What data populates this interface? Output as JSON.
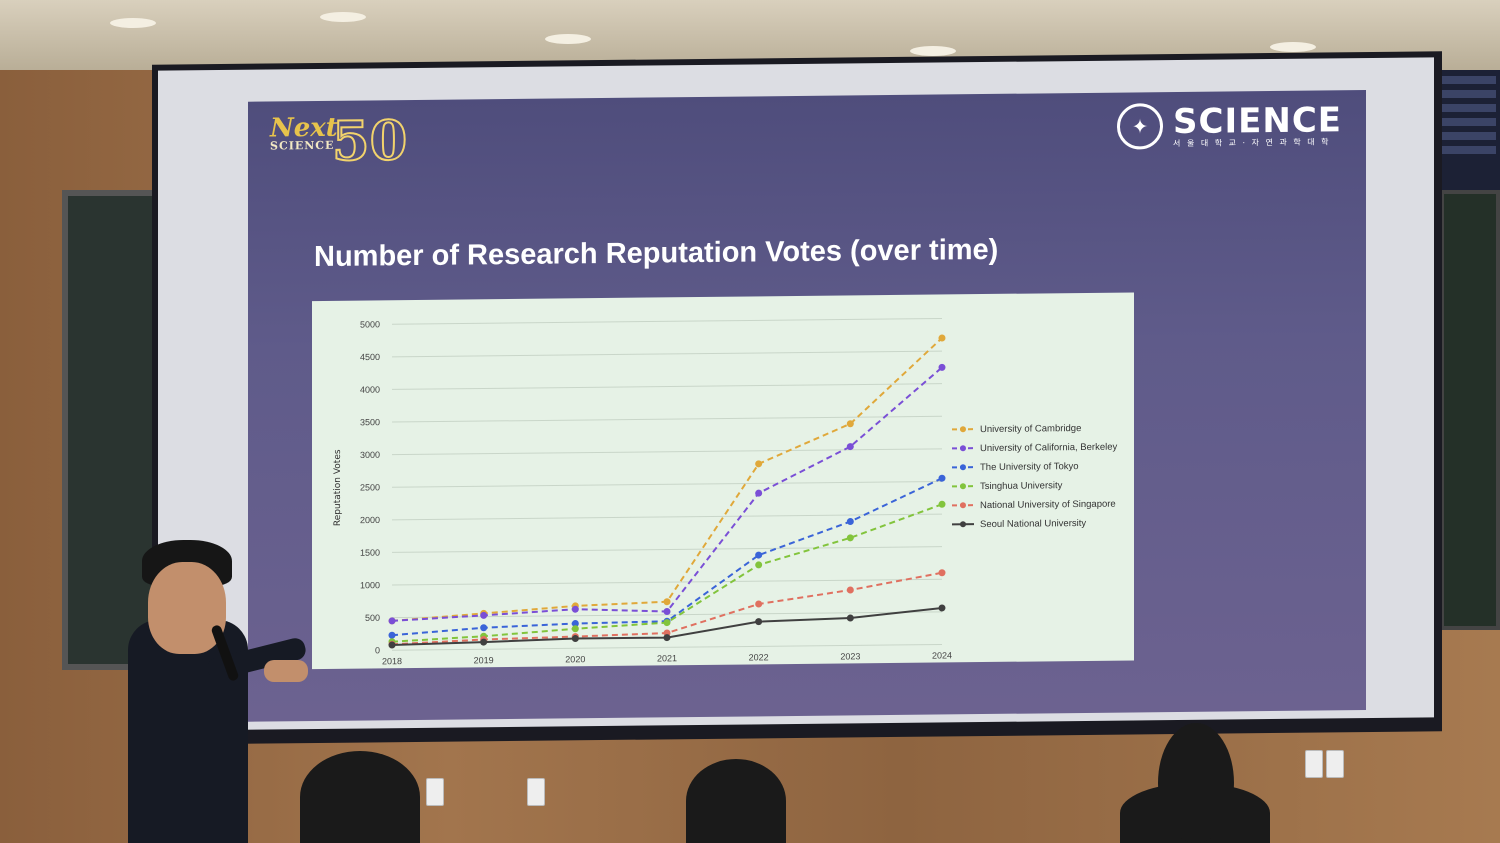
{
  "slide": {
    "title": "Number of Research Reputation Votes (over time)",
    "logo_left": {
      "word": "Next",
      "sub": "SCIENCE",
      "number": "50"
    },
    "logo_right": {
      "word": "SCIENCE",
      "sub": "서 울 대 학 교 · 자 연 과 학 대 학"
    }
  },
  "chart_data": {
    "type": "line",
    "title": "Number of Research Reputation Votes (over time)",
    "xlabel": "",
    "ylabel": "Reputation Votes",
    "categories": [
      "2018",
      "2019",
      "2020",
      "2021",
      "2022",
      "2023",
      "2024"
    ],
    "ylim": [
      0,
      5000
    ],
    "yticks": [
      "0",
      "500",
      "1000",
      "1500",
      "2000",
      "2500",
      "3000",
      "3500",
      "4000",
      "4500",
      "5000"
    ],
    "grid": true,
    "legend_position": "right",
    "series": [
      {
        "name": "University of Cambridge",
        "color": "#e0a83a",
        "dashed": true,
        "values": [
          450,
          550,
          650,
          700,
          2800,
          3400,
          4700
        ]
      },
      {
        "name": "University of California, Berkeley",
        "color": "#7a4fd6",
        "dashed": true,
        "values": [
          450,
          520,
          600,
          550,
          2350,
          3050,
          4250
        ]
      },
      {
        "name": "The University of Tokyo",
        "color": "#3a64d8",
        "dashed": true,
        "values": [
          230,
          330,
          380,
          400,
          1400,
          1900,
          2550
        ]
      },
      {
        "name": "Tsinghua University",
        "color": "#82c43c",
        "dashed": true,
        "values": [
          130,
          200,
          300,
          380,
          1250,
          1650,
          2150
        ]
      },
      {
        "name": "National University of Singapore",
        "color": "#e07060",
        "dashed": true,
        "values": [
          90,
          150,
          180,
          220,
          650,
          850,
          1100
        ]
      },
      {
        "name": "Seoul National University",
        "color": "#404040",
        "dashed": false,
        "values": [
          80,
          110,
          150,
          150,
          380,
          420,
          560
        ]
      }
    ]
  }
}
